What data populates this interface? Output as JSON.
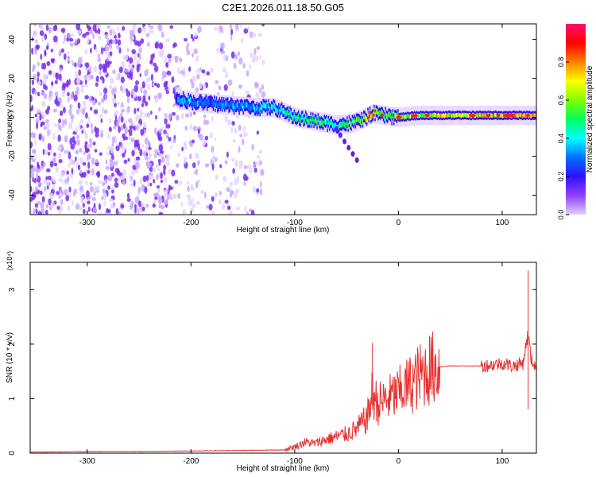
{
  "title": "C2E1.2026.011.18.50.G05",
  "chart_data": [
    {
      "type": "heatmap",
      "title": "C2E1.2026.011.18.50.G05",
      "xlabel": "Height of straight line (km)",
      "ylabel": "Frequency (Hz)",
      "xlim": [
        -355,
        133
      ],
      "ylim": [
        -50,
        48
      ],
      "xticks": [
        -300,
        -200,
        -100,
        0,
        100
      ],
      "yticks": [
        -40,
        -20,
        0,
        20,
        40
      ],
      "colorbar": {
        "label": "Normalized spectral amplitude",
        "range": [
          0,
          1
        ],
        "ticks": [
          0.0,
          0.2,
          0.4,
          0.6,
          0.8
        ],
        "tick_labels": [
          "0.0",
          "0.2",
          "0.4",
          "0.6",
          "0.8"
        ],
        "colors": [
          "#e0d0ff",
          "#9040ff",
          "#3010ff",
          "#0070ff",
          "#00ffff",
          "#00ff60",
          "#80ff00",
          "#ffff00",
          "#ff8000",
          "#ff0000",
          "#ff1070"
        ]
      },
      "signal_track": {
        "x": [
          -215,
          -200,
          -180,
          -160,
          -140,
          -120,
          -100,
          -80,
          -60,
          -45,
          -35,
          -25,
          -15,
          0,
          20,
          50,
          80,
          110,
          133
        ],
        "frequency": [
          10,
          8,
          7,
          6,
          5,
          5,
          0,
          -2,
          -4,
          -3,
          -1,
          2,
          1,
          0,
          1,
          1,
          1,
          1,
          1
        ],
        "amplitude": [
          0.3,
          0.35,
          0.3,
          0.35,
          0.35,
          0.4,
          0.45,
          0.5,
          0.45,
          0.55,
          0.6,
          0.7,
          0.55,
          0.6,
          0.6,
          0.65,
          0.7,
          0.75,
          0.7
        ]
      },
      "noise_region": {
        "x": [
          -355,
          -130
        ],
        "frequency": [
          -50,
          48
        ],
        "amplitude": 0.15
      }
    },
    {
      "type": "line",
      "xlabel": "Height of straight line (km)",
      "ylabel": "SNR (10 * v/v)",
      "scale_label": "(x10⁴)",
      "xlim": [
        -355,
        133
      ],
      "ylim": [
        0,
        3.5
      ],
      "xticks": [
        -300,
        -200,
        -100,
        0,
        100
      ],
      "yticks": [
        0,
        1,
        2,
        3
      ],
      "color": "#e83030",
      "series": [
        {
          "name": "SNR",
          "x": [
            -355,
            -300,
            -250,
            -200,
            -150,
            -110,
            -100,
            -90,
            -80,
            -70,
            -60,
            -50,
            -40,
            -30,
            -25,
            -20,
            -10,
            0,
            10,
            20,
            30,
            40,
            50,
            60,
            80,
            90,
            100,
            110,
            120,
            125,
            128,
            133
          ],
          "y": [
            0.02,
            0.03,
            0.03,
            0.04,
            0.05,
            0.06,
            0.12,
            0.2,
            0.18,
            0.25,
            0.3,
            0.35,
            0.45,
            0.65,
            1.1,
            0.9,
            1.0,
            1.1,
            1.25,
            1.4,
            1.55,
            1.58,
            1.6,
            1.6,
            1.6,
            1.62,
            1.65,
            1.6,
            1.65,
            2.2,
            1.7,
            1.6
          ]
        }
      ],
      "annotations": [
        {
          "x": -25,
          "y": 2.02,
          "text": ""
        },
        {
          "x": 125,
          "y": 3.35,
          "text": ""
        }
      ]
    }
  ]
}
